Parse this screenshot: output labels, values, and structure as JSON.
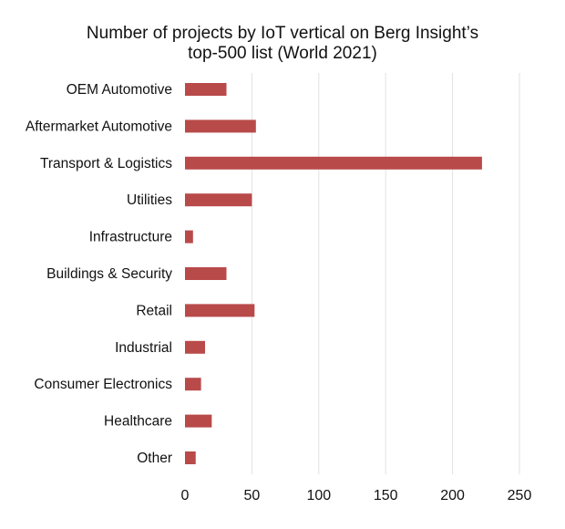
{
  "chart_data": {
    "type": "bar",
    "orientation": "horizontal",
    "title_lines": [
      "Number of projects by IoT vertical on Berg Insight’s",
      "top-500 list (World 2021)"
    ],
    "categories": [
      "OEM Automotive",
      "Aftermarket Automotive",
      "Transport & Logistics",
      "Utilities",
      "Infrastructure",
      "Buildings & Security",
      "Retail",
      "Industrial",
      "Consumer Electronics",
      "Healthcare",
      "Other"
    ],
    "values": [
      31,
      53,
      222,
      50,
      6,
      31,
      52,
      15,
      12,
      20,
      8
    ],
    "xlim": [
      0,
      250
    ],
    "xticks": [
      "0",
      "50",
      "100",
      "150",
      "200",
      "250"
    ],
    "xtick_values": [
      0,
      50,
      100,
      150,
      200,
      250
    ],
    "grid": "vertical",
    "legend": "none",
    "bar_color": "#b94a4a",
    "grid_color": "#e2e2e2"
  }
}
